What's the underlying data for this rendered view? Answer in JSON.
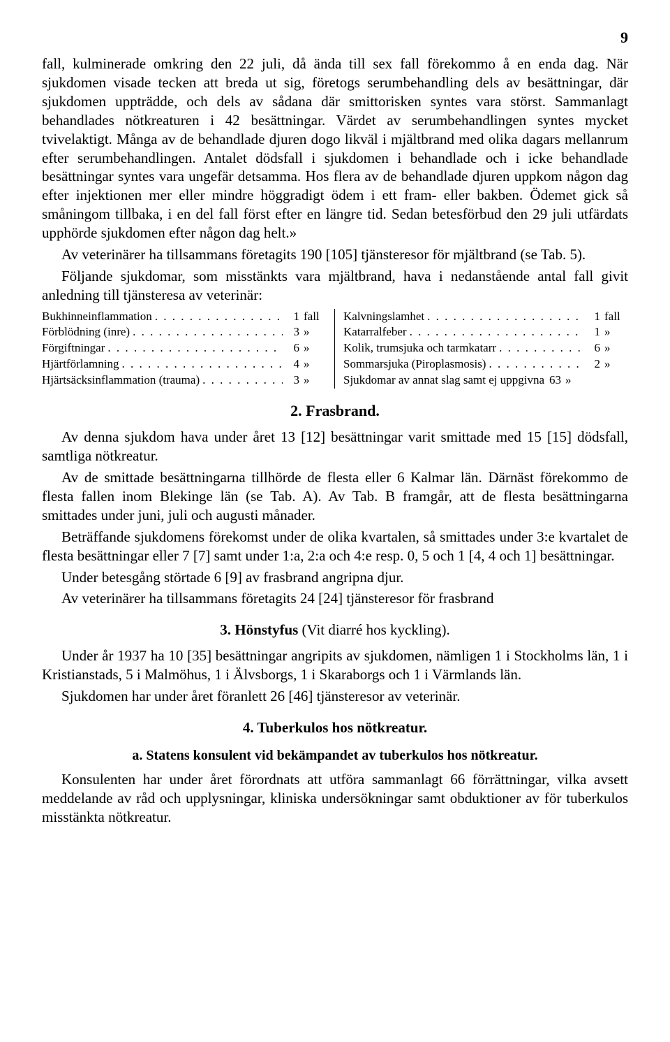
{
  "page_number": "9",
  "para1": "fall, kulminerade omkring den 22 juli, då ända till sex fall förekommo å en enda dag. När sjukdomen visade tecken att breda ut sig, företogs serumbehandling dels av besättningar, där sjukdomen uppträdde, och dels av sådana där smittorisken syntes vara störst. Sammanlagt behandlades nötkreaturen i 42 besättningar. Värdet av serumbehandlingen syntes mycket tvivelaktigt. Många av de behandlade djuren dogo likväl i mjältbrand med olika dagars mellanrum efter serumbehandlingen. Antalet dödsfall i sjukdomen i behandlade och i icke behandlade besättningar syntes vara ungefär detsamma. Hos flera av de behandlade djuren uppkom någon dag efter injektionen mer eller mindre höggradigt ödem i ett fram- eller bakben. Ödemet gick så småningom tillbaka, i en del fall först efter en längre tid. Sedan betesförbud den 29 juli utfärdats upphörde sjukdomen efter någon dag helt.»",
  "para2": "Av veterinärer ha tillsammans företagits 190 [105] tjänsteresor för mjältbrand (se Tab. 5).",
  "para3": "Följande sjukdomar, som misstänkts vara mjältbrand, hava i nedanstående antal fall givit anledning till tjänsteresa av veterinär:",
  "list_left": [
    {
      "label": "Bukhinneinflammation",
      "value": "1",
      "unit": "fall"
    },
    {
      "label": "Förblödning (inre)",
      "value": "3",
      "unit": "»"
    },
    {
      "label": "Förgiftningar",
      "value": "6",
      "unit": "»"
    },
    {
      "label": "Hjärtförlamning",
      "value": "4",
      "unit": "»"
    },
    {
      "label": "Hjärtsäcksinflammation (trauma)",
      "value": "3",
      "unit": "»"
    }
  ],
  "list_right": [
    {
      "label": "Kalvningslamhet",
      "value": "1",
      "unit": "fall"
    },
    {
      "label": "Katarralfeber",
      "value": "1",
      "unit": "»"
    },
    {
      "label": "Kolik, trumsjuka och tarmkatarr",
      "value": "6",
      "unit": "»"
    },
    {
      "label": "Sommarsjuka (Piroplasmosis)",
      "value": "2",
      "unit": "»"
    },
    {
      "label": "Sjukdomar av annat slag samt ej uppgivna",
      "value": "63",
      "unit": "»"
    }
  ],
  "dots": ". . . . . . . . . . . . . . . . . . . . . . . . . . . . . .",
  "sec2_title": "2. Frasbrand.",
  "sec2_p1": "Av denna sjukdom hava under året 13 [12] besättningar varit smittade med 15 [15] dödsfall, samtliga nötkreatur.",
  "sec2_p2": "Av de smittade besättningarna tillhörde de flesta eller 6 Kalmar län. Därnäst förekommo de flesta fallen inom Blekinge län (se Tab. A). Av Tab. B framgår, att de flesta besättningarna smittades under juni, juli och augusti månader.",
  "sec2_p3": "Beträffande sjukdomens förekomst under de olika kvartalen, så smittades under 3:e kvartalet de flesta besättningar eller 7 [7] samt under 1:a, 2:a och 4:e resp. 0, 5 och 1 [4, 4 och 1] besättningar.",
  "sec2_p4": "Under betesgång störtade 6 [9] av frasbrand angripna djur.",
  "sec2_p5": "Av veterinärer ha tillsammans företagits 24 [24] tjänsteresor för frasbrand",
  "sec3_title_bold": "3. Hönstyfus",
  "sec3_title_rest": " (Vit diarré hos kyckling).",
  "sec3_p1": "Under år 1937 ha 10 [35] besättningar angripits av sjukdomen, nämligen 1 i Stockholms län, 1 i Kristianstads, 5 i Malmöhus, 1 i Älvsborgs, 1 i Skaraborgs och 1 i Värmlands län.",
  "sec3_p2": "Sjukdomen har under året föranlett 26 [46] tjänsteresor av veterinär.",
  "sec4_title": "4. Tuberkulos hos nötkreatur.",
  "sec4_sub_a": "a.  Statens konsulent vid bekämpandet av tuberkulos hos nötkreatur.",
  "sec4_p1": "Konsulenten har under året förordnats att utföra sammanlagt 66 förrättningar, vilka avsett meddelande av råd och upplysningar, kliniska undersökningar samt obduktioner av för tuberkulos misstänkta nötkreatur."
}
